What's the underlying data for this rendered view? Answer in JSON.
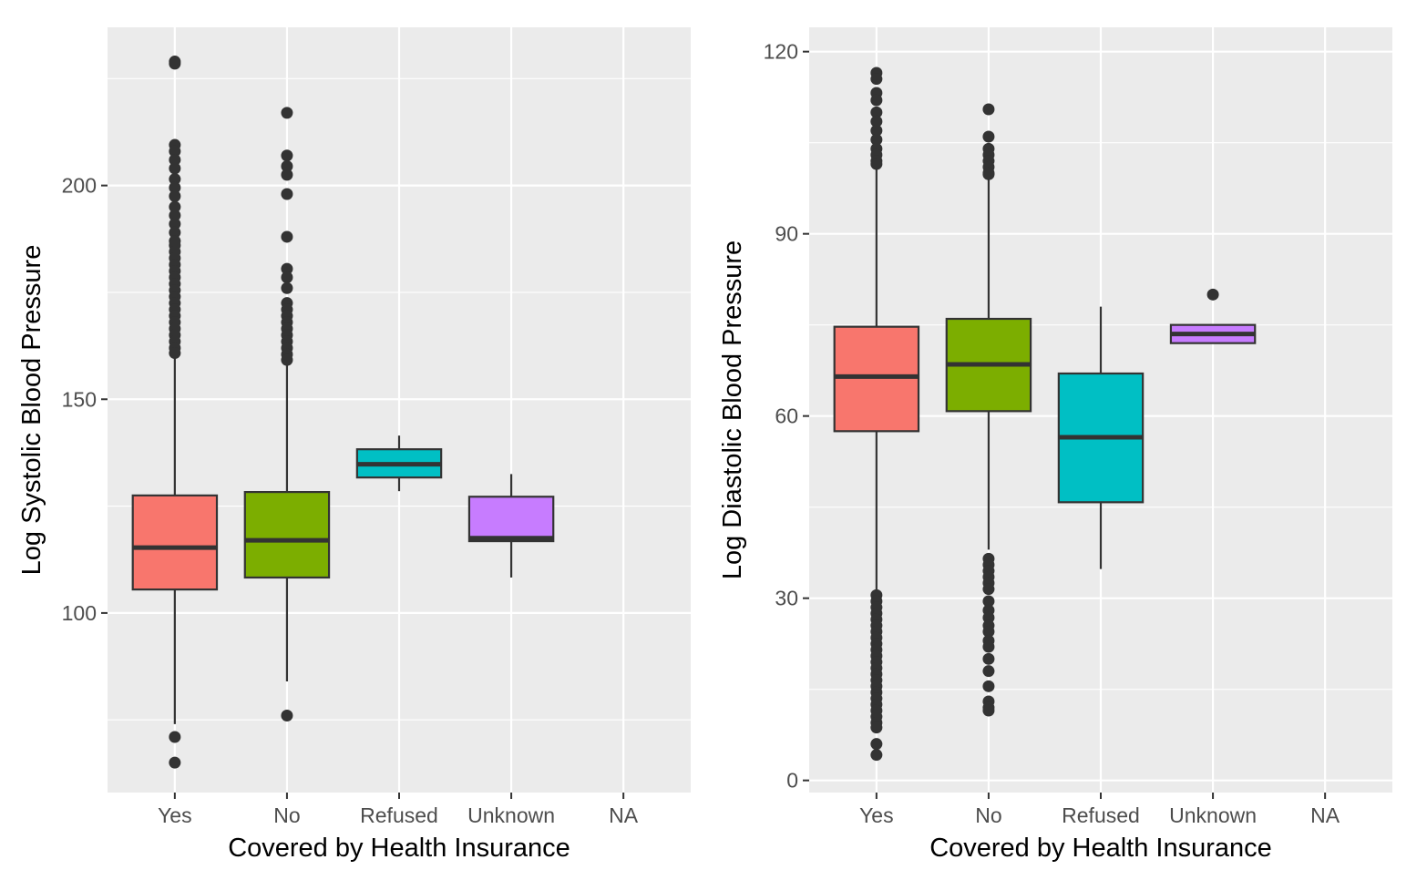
{
  "chart_data": [
    {
      "type": "box",
      "xlabel": "Covered by Health Insurance",
      "ylabel": "Log Systolic Blood Pressure",
      "categories": [
        "Yes",
        "No",
        "Refused",
        "Unknown",
        "NA"
      ],
      "ylim": [
        58,
        237
      ],
      "yticks": [
        100,
        150,
        200
      ],
      "grid": true,
      "boxes": [
        {
          "category": "Yes",
          "fill": "#F8766D",
          "lower_whisker": 74,
          "q1": 105.5,
          "median": 115.3,
          "q3": 127.5,
          "upper_whisker": 160.5,
          "outliers": [
            229,
            228.5,
            209.5,
            208,
            206,
            204,
            201.5,
            199.5,
            197.5,
            195,
            193,
            191,
            189,
            187,
            186,
            184.5,
            183,
            181.5,
            180,
            178.5,
            177,
            175.5,
            174,
            172.5,
            171,
            169.5,
            168,
            166.5,
            165,
            163.5,
            162,
            160.8,
            71,
            65
          ]
        },
        {
          "category": "No",
          "fill": "#7CAE00",
          "lower_whisker": 84,
          "q1": 108.3,
          "median": 117,
          "q3": 128.3,
          "upper_whisker": 158,
          "outliers": [
            217,
            207,
            204.5,
            202.5,
            198,
            188,
            180.5,
            178.5,
            176,
            172.5,
            171,
            169.5,
            168,
            166.5,
            165,
            163.5,
            162,
            160.5,
            159.2,
            76
          ]
        },
        {
          "category": "Refused",
          "fill": "#00BFC4",
          "lower_whisker": 128.5,
          "q1": 131.7,
          "median": 134.8,
          "q3": 138.3,
          "upper_whisker": 141.5,
          "outliers": []
        },
        {
          "category": "Unknown",
          "fill": "#C77CFF",
          "lower_whisker": 108.3,
          "q1": 116.8,
          "median": 117.5,
          "q3": 127.2,
          "upper_whisker": 132.5,
          "outliers": []
        }
      ]
    },
    {
      "type": "box",
      "xlabel": "Covered by Health Insurance",
      "ylabel": "Log Diastolic Blood Pressure",
      "categories": [
        "Yes",
        "No",
        "Refused",
        "Unknown",
        "NA"
      ],
      "ylim": [
        -2,
        124
      ],
      "yticks": [
        0,
        30,
        60,
        90,
        120
      ],
      "grid": true,
      "boxes": [
        {
          "category": "Yes",
          "fill": "#F8766D",
          "lower_whisker": 31.2,
          "q1": 57.5,
          "median": 66.5,
          "q3": 74.7,
          "upper_whisker": 101,
          "outliers": [
            116.5,
            115.5,
            113.2,
            112,
            110,
            108.5,
            107,
            105.5,
            104,
            103,
            102,
            101.5,
            30.5,
            29.5,
            28.5,
            27.5,
            26.5,
            25.5,
            24.5,
            23.5,
            22.5,
            21.5,
            20.5,
            19.5,
            18.5,
            17.5,
            16.5,
            15.5,
            14.5,
            13.5,
            12.5,
            11.5,
            10.5,
            9.5,
            8.7,
            6,
            4.2
          ]
        },
        {
          "category": "No",
          "fill": "#7CAE00",
          "lower_whisker": 38,
          "q1": 60.8,
          "median": 68.5,
          "q3": 76,
          "upper_whisker": 99.3,
          "outliers": [
            110.5,
            106,
            104,
            103,
            102,
            101,
            100,
            99.8,
            36.5,
            35.5,
            34.5,
            33.5,
            32.5,
            31.5,
            29.5,
            28,
            26.8,
            25.5,
            24.5,
            23,
            22,
            20,
            18,
            15.5,
            13,
            12,
            11.5
          ]
        },
        {
          "category": "Refused",
          "fill": "#00BFC4",
          "lower_whisker": 34.8,
          "q1": 45.8,
          "median": 56.5,
          "q3": 67,
          "upper_whisker": 78,
          "outliers": []
        },
        {
          "category": "Unknown",
          "fill": "#C77CFF",
          "lower_whisker": 72,
          "q1": 72,
          "median": 73.5,
          "q3": 75,
          "upper_whisker": 75,
          "outliers": [
            80
          ]
        }
      ]
    }
  ]
}
